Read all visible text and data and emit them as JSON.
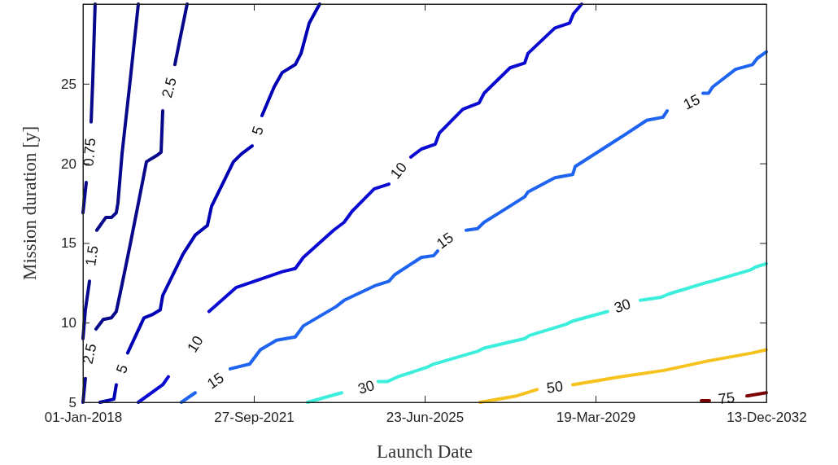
{
  "chart_data": {
    "type": "line",
    "xlabel": "Launch Date",
    "ylabel": "Mission duration [y]",
    "xlim": [
      "2018-01-01",
      "2032-12-13"
    ],
    "xticks": [
      {
        "value": "2018-01-01",
        "label": "01-Jan-2018"
      },
      {
        "value": "2021-09-27",
        "label": "27-Sep-2021"
      },
      {
        "value": "2025-06-23",
        "label": "23-Jun-2025"
      },
      {
        "value": "2029-03-19",
        "label": "19-Mar-2029"
      },
      {
        "value": "2032-12-13",
        "label": "13-Dec-2032"
      }
    ],
    "ylim": [
      5,
      30
    ],
    "yticks": [
      5,
      10,
      15,
      20,
      25
    ],
    "series": [
      {
        "name": "0.75",
        "color": "#08088c",
        "x": [
          "2018-04-08",
          "2018-03-20",
          "2018-03-07",
          "2018-02-22",
          "2018-01-27",
          "2018-01-01"
        ],
        "values": [
          30,
          25.2,
          22.6,
          null,
          18.8,
          16.9
        ]
      },
      {
        "name": "1.5",
        "color": "#08088c",
        "x": [
          "2019-03-19",
          "2019-01-13",
          "2018-11-09",
          "2018-10-07",
          "2018-09-24",
          "2018-08-16",
          "2018-07-02",
          "2018-04-21",
          "2018-03-13",
          "2018-02-22",
          "2018-01-20",
          "2018-01-01"
        ],
        "values": [
          30,
          25.2,
          20.6,
          17.5,
          16.9,
          16.6,
          16.6,
          15.8,
          null,
          12.6,
          10.8,
          9.0
        ]
      },
      {
        "name": "2.5",
        "color": "#08088c",
        "x": [
          "2020-04-12",
          "2020-02-20",
          "2020-01-05",
          "2019-11-21",
          "2019-09-30",
          "2019-09-17",
          "2019-08-15",
          "2019-05-23",
          "2019-04-01",
          "2019-01-13",
          "2018-11-09",
          "2018-09-24",
          "2018-08-16",
          "2018-06-12",
          "2018-04-15",
          "2018-02-22",
          "2018-01-20",
          "2018-01-01"
        ],
        "values": [
          30,
          28.0,
          26.2,
          null,
          23.3,
          20.7,
          20.5,
          20.1,
          18.0,
          14.9,
          12.4,
          10.7,
          10.3,
          10.2,
          9.6,
          null,
          6.5,
          5
        ]
      },
      {
        "name": "5",
        "color": "#0000b4",
        "x": [
          "2023-03-07",
          "2022-12-13",
          "2022-10-09",
          "2022-08-24",
          "2022-05-12",
          "2022-03-08",
          "2021-12-01",
          "2021-10-29",
          "2021-09-14",
          "2021-06-21",
          "2021-04-17",
          "2020-10-24",
          "2020-09-21",
          "2020-06-16",
          "2020-03-10",
          "2019-09-30",
          "2019-09-10",
          "2019-07-07",
          "2019-05-03",
          "2018-12-24",
          "2018-11-09",
          "2018-09-24",
          "2018-09-05",
          "2018-05-17"
        ],
        "values": [
          30,
          28.8,
          26.9,
          26.2,
          25.7,
          24.8,
          23.0,
          null,
          21.1,
          20.6,
          20.1,
          17.3,
          16.1,
          15.5,
          14.3,
          11.7,
          10.8,
          10.5,
          10.3,
          8.1,
          null,
          6.1,
          5.2,
          5
        ]
      },
      {
        "name": "10",
        "color": "#0a0ad2",
        "x": [
          "2019-03-19",
          "2019-09-30",
          "2019-11-14",
          "2020-06-16",
          "2020-10-04",
          "2021-05-07",
          "2021-08-25",
          "2022-05-12",
          "2022-08-24",
          "2022-10-28",
          "2023-06-26",
          "2023-09-18",
          "2023-11-22",
          "2024-05-16",
          "2024-09-10",
          "2024-11-27",
          "2025-03-04",
          "2025-05-28",
          "2025-09-15",
          "2025-10-18",
          "2026-04-24",
          "2026-09-01",
          "2026-10-10",
          "2027-05-06",
          "2027-08-31",
          "2027-09-26",
          "2028-04-28",
          "2028-08-23",
          "2028-09-24",
          "2028-11-28"
        ],
        "values": [
          5,
          6.1,
          6.6,
          null,
          10.7,
          12.2,
          12.5,
          13.2,
          13.4,
          14.1,
          15.8,
          16.3,
          17.0,
          18.4,
          18.7,
          null,
          20.4,
          20.9,
          21.2,
          21.9,
          23.4,
          23.8,
          24.4,
          26.0,
          26.3,
          26.9,
          28.5,
          28.8,
          29.4,
          30
        ]
      },
      {
        "name": "15",
        "color": "#1e64f0",
        "x": [
          "2020-02-26",
          "2020-06-16",
          "2020-11-25",
          "2021-03-22",
          "2021-08-25",
          "2021-11-18",
          "2022-03-28",
          "2022-08-24",
          "2022-10-28",
          "2023-07-15",
          "2023-09-18",
          "2024-05-16",
          "2024-09-10",
          "2024-10-25",
          "2025-05-28",
          "2025-09-02",
          "2025-10-05",
          "2025-12-02",
          "2026-05-20",
          "2026-08-19",
          "2026-10-10",
          "2027-03-22",
          "2027-08-31",
          "2027-09-26",
          "2028-04-28",
          "2028-09-18",
          "2028-10-07",
          "2029-09-30",
          "2030-05-02",
          "2030-09-09",
          "2030-10-12",
          "2031-04-25",
          "2031-07-25",
          "2031-09-08",
          "2031-10-11",
          "2032-04-10",
          "2032-08-24",
          "2032-10-02",
          "2032-12-13"
        ],
        "values": [
          5,
          5.6,
          null,
          7.1,
          7.4,
          8.3,
          8.9,
          9.1,
          9.8,
          11.0,
          11.4,
          12.3,
          12.6,
          13.0,
          14.1,
          14.2,
          14.5,
          null,
          15.8,
          15.9,
          16.3,
          17.1,
          17.9,
          18.2,
          19.1,
          19.3,
          19.8,
          21.6,
          22.7,
          22.9,
          23.3,
          null,
          24.4,
          24.4,
          24.8,
          25.9,
          26.2,
          26.6,
          27.0
        ]
      },
      {
        "name": "30",
        "color": "#3ceedc",
        "x": [
          "2022-11-30",
          "2023-08-30",
          "2024-03-12",
          "2024-06-17",
          "2024-08-28",
          "2024-11-20",
          "2025-07-12",
          "2025-09-02",
          "2025-10-18",
          "2026-08-19",
          "2026-10-10",
          "2027-08-31",
          "2027-10-09",
          "2028-07-28",
          "2028-09-18",
          "2029-06-24",
          "2029-10-19",
          "2030-03-11",
          "2030-08-27",
          "2030-10-25",
          "2031-08-13",
          "2031-10-04",
          "2032-08-05",
          "2032-09-19",
          "2032-12-13"
        ],
        "values": [
          5,
          5.6,
          null,
          6.3,
          6.3,
          6.6,
          7.2,
          7.4,
          7.5,
          8.2,
          8.4,
          9.0,
          9.2,
          9.9,
          10.1,
          10.7,
          null,
          11.4,
          11.6,
          11.8,
          12.5,
          12.6,
          13.3,
          13.5,
          13.7
        ]
      },
      {
        "name": "50",
        "color": "#f5c21e",
        "x": [
          "2026-09-08",
          "2027-06-27",
          "2027-12-07",
          "2028-04-28",
          "2028-09-18",
          "2029-09-30",
          "2030-09-16",
          "2031-09-08",
          "2032-08-24",
          "2032-12-13"
        ],
        "values": [
          5,
          5.4,
          5.8,
          null,
          6.1,
          6.6,
          7.0,
          7.6,
          8.1,
          8.3
        ]
      },
      {
        "name": "75",
        "color": "#7d0000",
        "x": [
          "2031-07-12",
          "2031-09-15",
          "2032-01-29",
          "2032-07-10",
          "2032-09-25",
          "2032-12-13"
        ],
        "values": [
          5.1,
          5.1,
          null,
          5.4,
          5.5,
          5.6
        ]
      }
    ]
  }
}
